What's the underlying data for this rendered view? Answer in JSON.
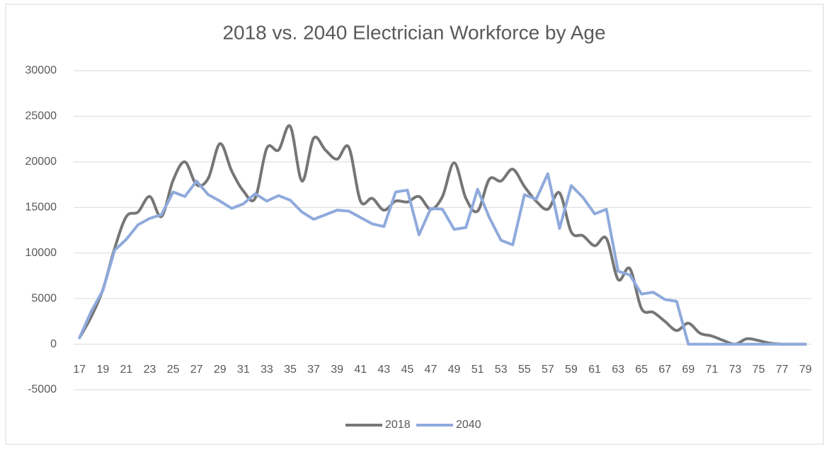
{
  "chart_data": {
    "type": "line",
    "title": "2018 vs. 2040 Electrician Workforce by Age",
    "categories": [
      17,
      null,
      19,
      null,
      21,
      null,
      23,
      null,
      25,
      null,
      27,
      null,
      29,
      null,
      31,
      null,
      33,
      null,
      35,
      null,
      37,
      null,
      39,
      null,
      41,
      null,
      43,
      null,
      45,
      null,
      47,
      null,
      49,
      null,
      51,
      null,
      53,
      null,
      55,
      null,
      57,
      null,
      59,
      null,
      61,
      null,
      63,
      null,
      65,
      null,
      67,
      null,
      69,
      null,
      71,
      null,
      73,
      null,
      75,
      null,
      77,
      null,
      79
    ],
    "series": [
      {
        "name": "2018",
        "color": "#767676",
        "smooth": true,
        "values": [
          700,
          3000,
          6000,
          10500,
          14000,
          14500,
          16200,
          14000,
          18000,
          20000,
          17500,
          18200,
          22000,
          19000,
          16800,
          16000,
          21500,
          21300,
          23900,
          17900,
          22600,
          21300,
          20300,
          21600,
          15700,
          16000,
          14700,
          15700,
          15600,
          16200,
          14800,
          16200,
          19900,
          16000,
          14600,
          18100,
          17900,
          19200,
          17300,
          15700,
          14800,
          16600,
          12300,
          11900,
          10800,
          11600,
          7100,
          8300,
          3900,
          3500,
          2500,
          1500,
          2300,
          1200,
          900,
          400,
          0,
          600,
          400,
          100,
          0,
          0,
          0
        ]
      },
      {
        "name": "2040",
        "color": "#8faadc",
        "smooth": false,
        "values": [
          700,
          3600,
          5900,
          10300,
          11500,
          13100,
          13800,
          14200,
          16700,
          16200,
          17900,
          16400,
          15700,
          14900,
          15400,
          16500,
          15700,
          16300,
          15800,
          14500,
          13700,
          14200,
          14700,
          14600,
          13900,
          13200,
          12900,
          16700,
          16900,
          12000,
          14900,
          14800,
          12600,
          12800,
          17000,
          13900,
          11400,
          10900,
          16400,
          15900,
          18700,
          12700,
          17400,
          16100,
          14300,
          14800,
          8000,
          7600,
          5500,
          5700,
          4900,
          4700,
          0,
          0,
          0,
          0,
          0,
          0,
          0,
          0,
          0,
          0,
          0
        ]
      }
    ],
    "ylim": [
      -5000,
      30000
    ],
    "yticks": [
      -5000,
      0,
      5000,
      10000,
      15000,
      20000,
      25000,
      30000
    ],
    "grid": true,
    "legend": "bottom"
  }
}
